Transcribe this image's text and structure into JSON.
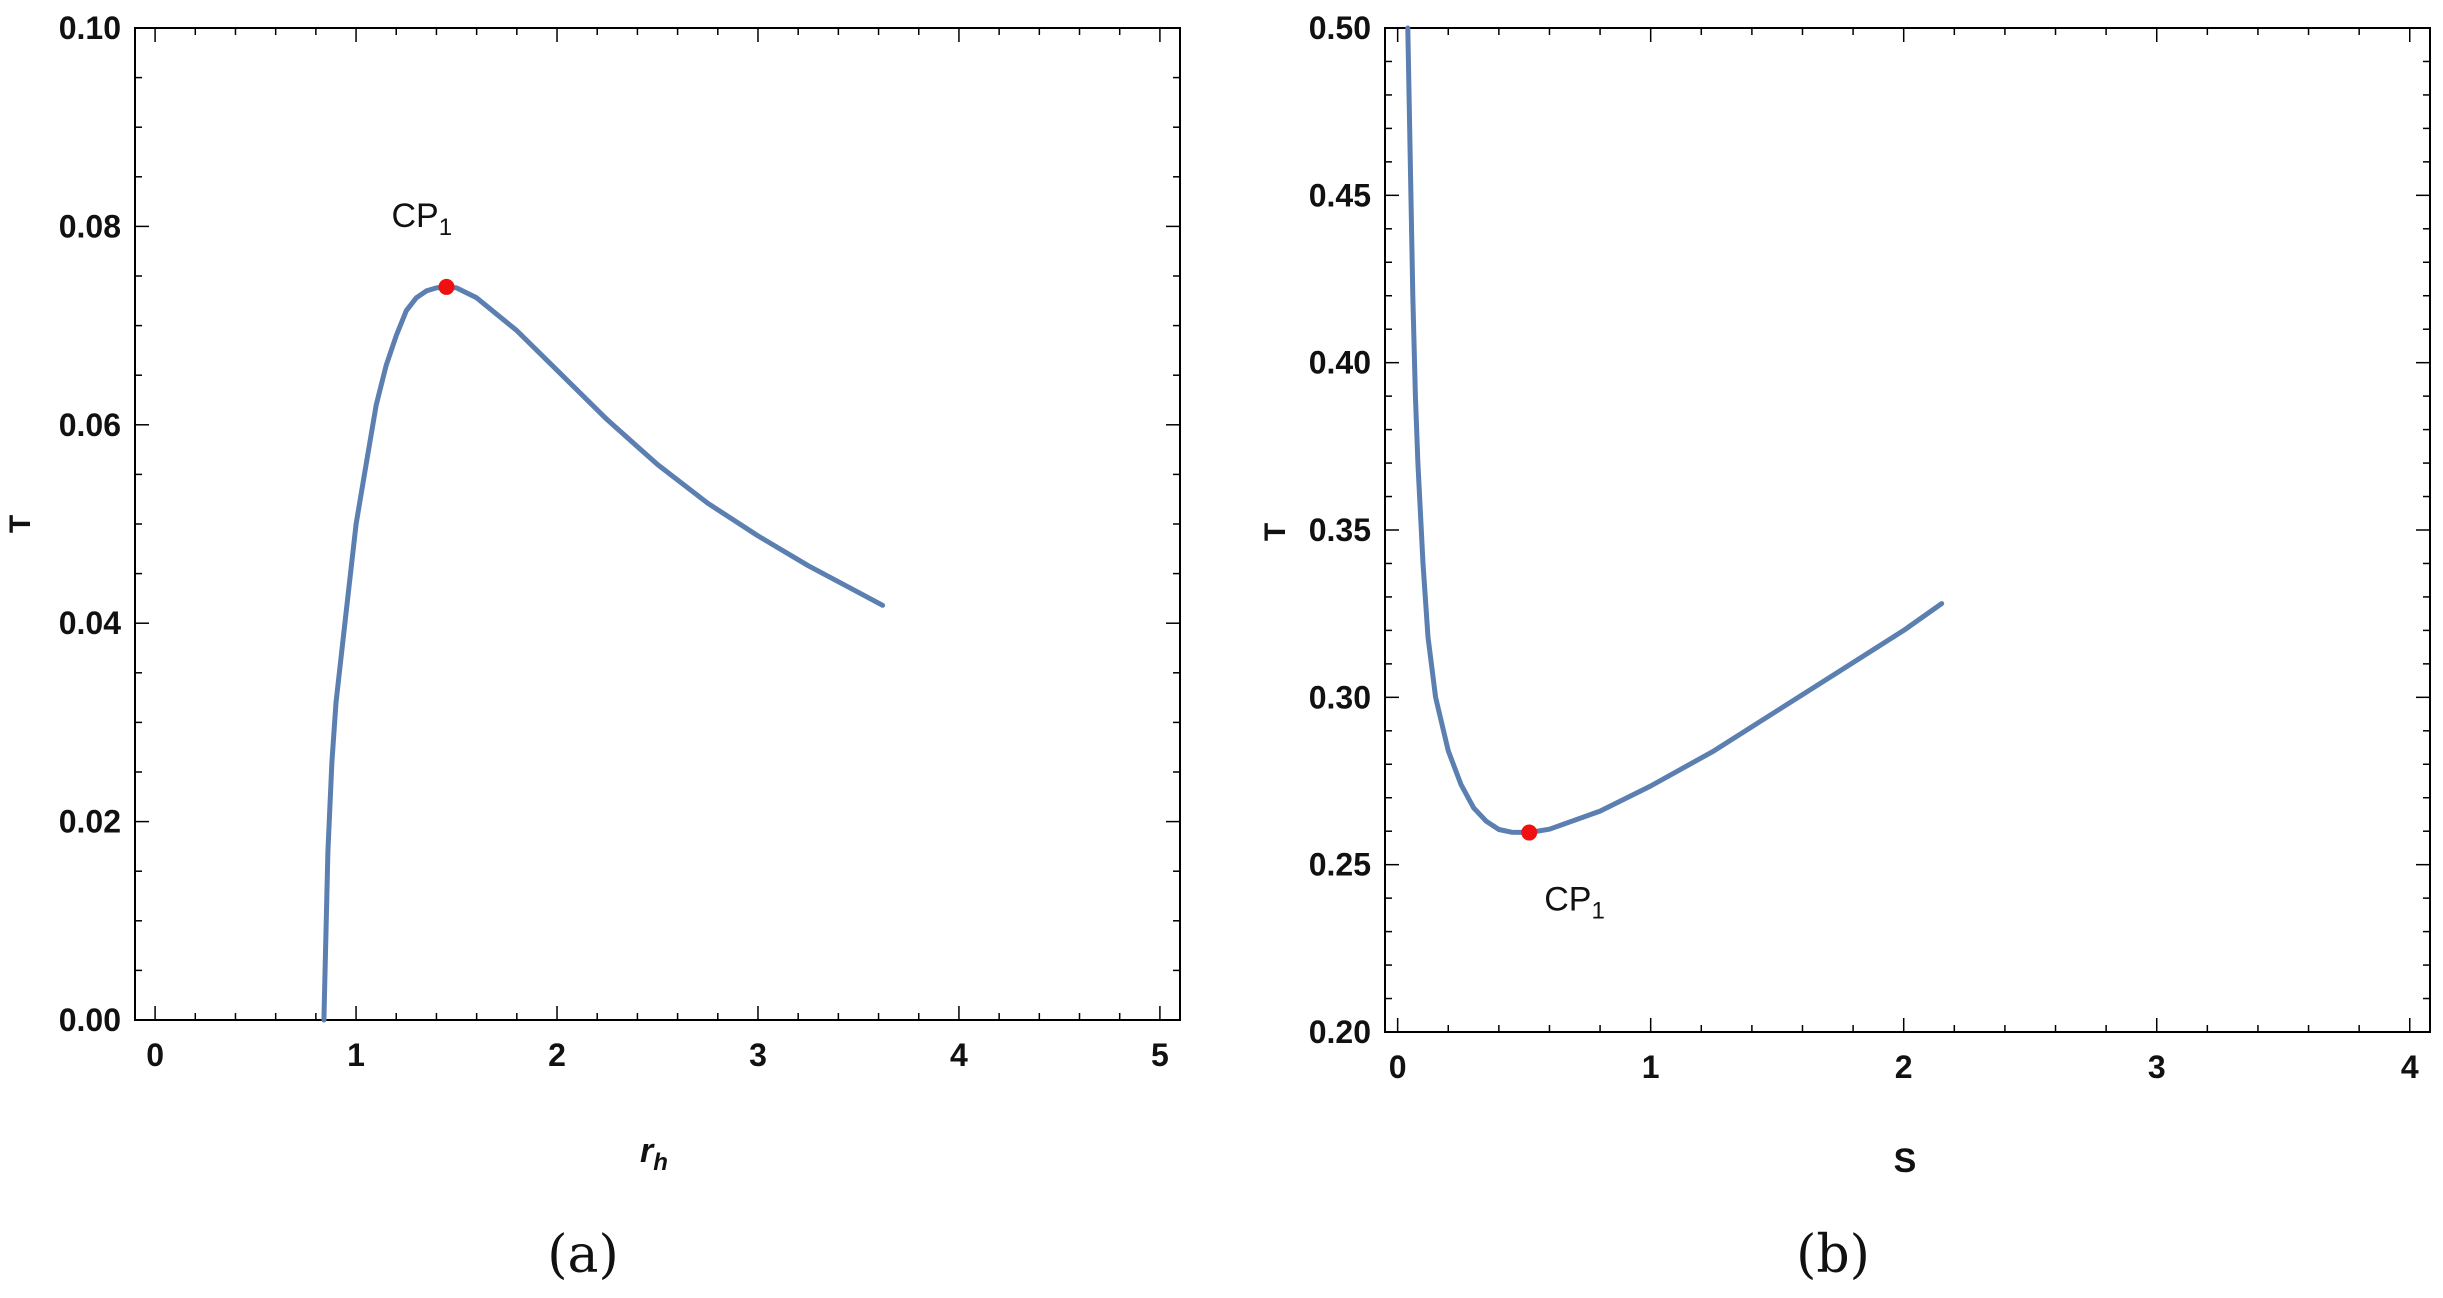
{
  "chart_data": [
    {
      "type": "line",
      "panel_label": "(a)",
      "xlabel": "r",
      "xlabel_sub": "h",
      "ylabel": "T",
      "xlim": [
        0,
        5
      ],
      "ylim": [
        0,
        0.1
      ],
      "x_ticks": [
        "0",
        "1",
        "2",
        "3",
        "4",
        "5"
      ],
      "y_ticks": [
        "0.00",
        "0.02",
        "0.04",
        "0.06",
        "0.08",
        "0.10"
      ],
      "series": [
        {
          "points": [
            [
              0.84,
              0.0
            ],
            [
              0.86,
              0.017
            ],
            [
              0.88,
              0.026
            ],
            [
              0.9,
              0.032
            ],
            [
              0.95,
              0.041
            ],
            [
              1.0,
              0.05
            ],
            [
              1.05,
              0.056
            ],
            [
              1.1,
              0.062
            ],
            [
              1.15,
              0.066
            ],
            [
              1.2,
              0.069
            ],
            [
              1.25,
              0.0715
            ],
            [
              1.3,
              0.0728
            ],
            [
              1.35,
              0.0735
            ],
            [
              1.4,
              0.0738
            ],
            [
              1.45,
              0.0739
            ],
            [
              1.5,
              0.0738
            ],
            [
              1.6,
              0.0728
            ],
            [
              1.8,
              0.0695
            ],
            [
              2.0,
              0.0655
            ],
            [
              2.25,
              0.0605
            ],
            [
              2.5,
              0.056
            ],
            [
              2.75,
              0.0521
            ],
            [
              3.0,
              0.0488
            ],
            [
              3.25,
              0.0458
            ],
            [
              3.5,
              0.0431
            ],
            [
              3.62,
              0.0418
            ]
          ]
        }
      ],
      "critical_point": {
        "label": "CP",
        "label_sub": "1",
        "x": 1.45,
        "y": 0.0739
      }
    },
    {
      "type": "line",
      "panel_label": "(b)",
      "xlabel": "S",
      "ylabel": "T",
      "xlim": [
        0,
        4
      ],
      "ylim": [
        0.2,
        0.5
      ],
      "x_ticks": [
        "0",
        "1",
        "2",
        "3",
        "4"
      ],
      "y_ticks": [
        "0.20",
        "0.25",
        "0.30",
        "0.35",
        "0.40",
        "0.45",
        "0.50"
      ],
      "series": [
        {
          "points": [
            [
              0.04,
              0.5
            ],
            [
              0.05,
              0.46
            ],
            [
              0.06,
              0.42
            ],
            [
              0.07,
              0.39
            ],
            [
              0.08,
              0.37
            ],
            [
              0.1,
              0.34
            ],
            [
              0.12,
              0.318
            ],
            [
              0.15,
              0.3
            ],
            [
              0.2,
              0.284
            ],
            [
              0.25,
              0.274
            ],
            [
              0.3,
              0.267
            ],
            [
              0.35,
              0.263
            ],
            [
              0.4,
              0.2605
            ],
            [
              0.45,
              0.2597
            ],
            [
              0.52,
              0.2596
            ],
            [
              0.6,
              0.2606
            ],
            [
              0.8,
              0.266
            ],
            [
              1.0,
              0.2735
            ],
            [
              1.25,
              0.284
            ],
            [
              1.5,
              0.296
            ],
            [
              1.75,
              0.308
            ],
            [
              2.0,
              0.32
            ],
            [
              2.15,
              0.328
            ]
          ]
        }
      ],
      "critical_point": {
        "label": "CP",
        "label_sub": "1",
        "x": 0.52,
        "y": 0.2596
      }
    }
  ],
  "colors": {
    "curve": "#5b7fb0",
    "critical_point": "#f01010",
    "axis": "#000000"
  }
}
